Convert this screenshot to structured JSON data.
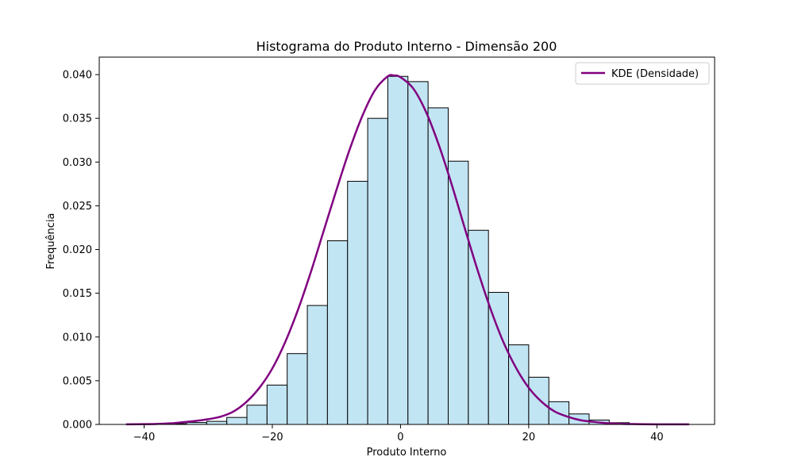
{
  "chart_data": {
    "type": "bar",
    "title": "Histograma do Produto Interno - Dimensão 200",
    "xlabel": "Produto Interno",
    "ylabel": "Frequência",
    "xlim": [
      -47,
      49
    ],
    "ylim": [
      0,
      0.042
    ],
    "x_ticks": [
      -40,
      -20,
      0,
      20,
      40
    ],
    "x_tick_labels": [
      "−40",
      "−20",
      "0",
      "20",
      "40"
    ],
    "y_ticks": [
      0.0,
      0.005,
      0.01,
      0.015,
      0.02,
      0.025,
      0.03,
      0.035,
      0.04
    ],
    "y_tick_labels": [
      "0.000",
      "0.005",
      "0.010",
      "0.015",
      "0.020",
      "0.025",
      "0.030",
      "0.035",
      "0.040"
    ],
    "grid": false,
    "legend_position": "top-right",
    "bin_edges": [
      -42.8,
      -39.66,
      -36.52,
      -33.38,
      -30.24,
      -27.1,
      -23.96,
      -20.82,
      -17.68,
      -14.54,
      -11.4,
      -8.26,
      -5.12,
      -1.98,
      1.16,
      4.3,
      7.44,
      10.58,
      13.72,
      16.86,
      20.0,
      23.14,
      26.28,
      29.42,
      32.56,
      35.7,
      38.84,
      41.98,
      45.12
    ],
    "frequencies": [
      2e-05,
      3e-05,
      8e-05,
      0.00022,
      0.00035,
      0.0008,
      0.0022,
      0.0045,
      0.0081,
      0.0136,
      0.021,
      0.0278,
      0.035,
      0.0398,
      0.0392,
      0.0362,
      0.0301,
      0.0222,
      0.0151,
      0.0091,
      0.0054,
      0.0026,
      0.0012,
      0.0005,
      0.0002,
      6e-05,
      2e-05,
      1e-05
    ],
    "bar_color": "#c2e5f3",
    "bar_edge_color": "#000000",
    "series": [
      {
        "name": "KDE (Densidade)",
        "color": "#800080",
        "x": [
          -42.8,
          -40,
          -38,
          -36,
          -34,
          -32,
          -30,
          -28,
          -26,
          -24,
          -22,
          -20,
          -18,
          -16,
          -14,
          -12,
          -10,
          -8,
          -6,
          -4,
          -2,
          -1,
          0,
          2,
          4,
          6,
          8,
          10,
          12,
          14,
          16,
          18,
          20,
          22,
          24,
          26,
          28,
          30,
          32,
          34,
          36,
          38,
          40,
          42,
          45
        ],
        "y": [
          1e-05,
          3e-05,
          6e-05,
          0.00012,
          0.00025,
          0.0004,
          0.0006,
          0.0009,
          0.0015,
          0.0026,
          0.0042,
          0.0064,
          0.0094,
          0.0131,
          0.0174,
          0.0221,
          0.0268,
          0.0313,
          0.0352,
          0.0382,
          0.0398,
          0.0399,
          0.0397,
          0.0384,
          0.0357,
          0.0319,
          0.0274,
          0.0225,
          0.0177,
          0.0133,
          0.0095,
          0.0065,
          0.0042,
          0.0026,
          0.0015,
          0.0009,
          0.0005,
          0.0003,
          0.00016,
          8e-05,
          4e-05,
          2e-05,
          1e-05,
          1e-05,
          1e-05
        ]
      }
    ]
  }
}
